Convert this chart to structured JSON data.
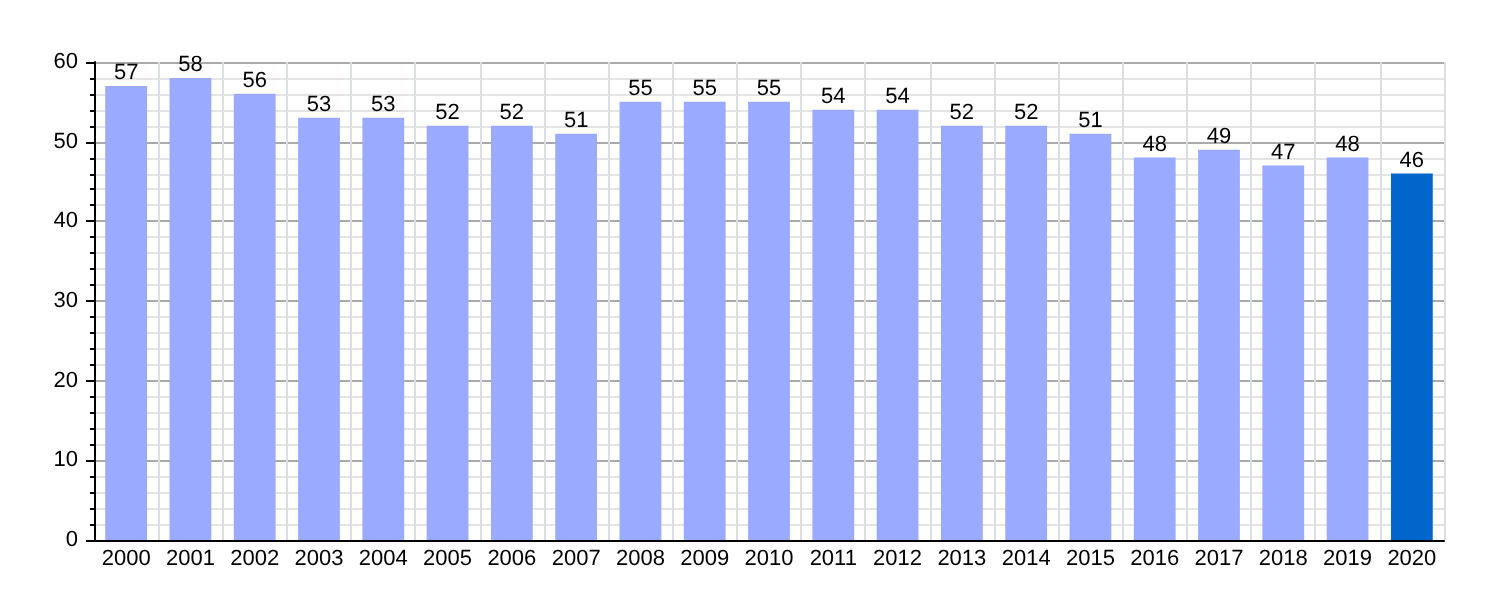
{
  "chart_data": {
    "type": "bar",
    "categories": [
      "2000",
      "2001",
      "2002",
      "2003",
      "2004",
      "2005",
      "2006",
      "2007",
      "2008",
      "2009",
      "2010",
      "2011",
      "2012",
      "2013",
      "2014",
      "2015",
      "2016",
      "2017",
      "2018",
      "2019",
      "2020"
    ],
    "values": [
      57,
      58,
      56,
      53,
      53,
      52,
      52,
      51,
      55,
      55,
      55,
      54,
      54,
      52,
      52,
      51,
      48,
      49,
      47,
      48,
      46
    ],
    "colors": [
      "#99aaff",
      "#99aaff",
      "#99aaff",
      "#99aaff",
      "#99aaff",
      "#99aaff",
      "#99aaff",
      "#99aaff",
      "#99aaff",
      "#99aaff",
      "#99aaff",
      "#99aaff",
      "#99aaff",
      "#99aaff",
      "#99aaff",
      "#99aaff",
      "#99aaff",
      "#99aaff",
      "#99aaff",
      "#99aaff",
      "#0066cc"
    ],
    "ylim": [
      0,
      60
    ],
    "yticks": [
      0,
      10,
      20,
      30,
      40,
      50,
      60
    ],
    "grid": true,
    "data_labels": true
  }
}
